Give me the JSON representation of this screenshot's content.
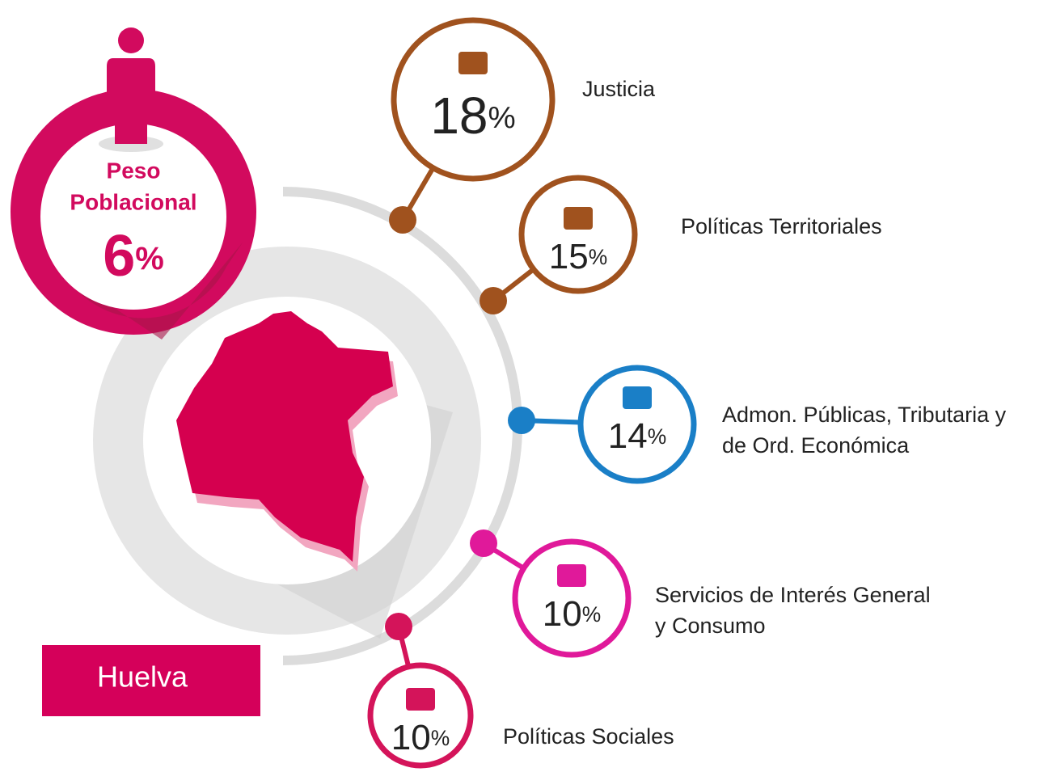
{
  "population": {
    "title_line1": "Peso",
    "title_line2": "Poblacional",
    "value": 6,
    "unit": "%"
  },
  "region": "Huelva",
  "items": [
    {
      "label_lines": [
        "Justicia"
      ],
      "value": 18,
      "unit": "%"
    },
    {
      "label_lines": [
        "Políticas Territoriales"
      ],
      "value": 15,
      "unit": "%"
    },
    {
      "label_lines": [
        "Admon. Públicas, Tributaria y",
        "de Ord. Económica"
      ],
      "value": 14,
      "unit": "%"
    },
    {
      "label_lines": [
        "Servicios de Interés General",
        "y Consumo"
      ],
      "value": 10,
      "unit": "%"
    },
    {
      "label_lines": [
        "Políticas Sociales"
      ],
      "value": 10,
      "unit": "%"
    }
  ]
}
